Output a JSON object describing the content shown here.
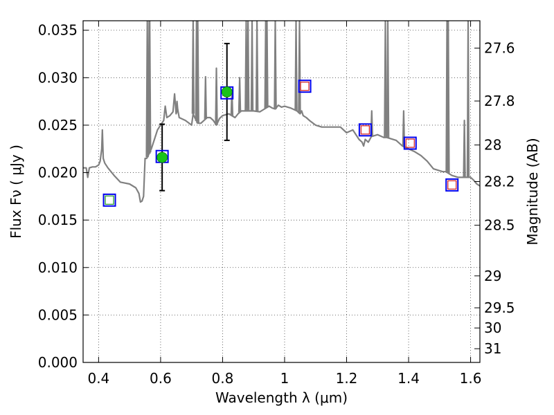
{
  "chart_data": {
    "type": "scatter",
    "xlabel": "Wavelength  λ (μm)",
    "ylabel": "Flux  Fν  ( μJy )",
    "y2label": "Magnitude (AB)",
    "xlim": [
      0.35,
      1.63
    ],
    "ylim": [
      0.0,
      0.036
    ],
    "grid": true,
    "x_ticks": [
      0.4,
      0.6,
      0.8,
      1.0,
      1.2,
      1.4,
      1.6
    ],
    "x_tick_labels": [
      "0.4",
      "0.6",
      "0.8",
      "1",
      "1.2",
      "1.4",
      "1.6"
    ],
    "y_ticks": [
      0.0,
      0.005,
      0.01,
      0.015,
      0.02,
      0.025,
      0.03,
      0.035
    ],
    "y_tick_labels": [
      "0.000",
      "0.005",
      "0.010",
      "0.015",
      "0.020",
      "0.025",
      "0.030",
      "0.035"
    ],
    "mag_ticks": [
      27.6,
      27.8,
      28,
      28.2,
      28.5,
      29,
      29.5,
      30,
      31
    ],
    "mag_tick_labels": [
      "27.6",
      "27.8",
      "28",
      "28.2",
      "28.5",
      "29",
      "29.5",
      "30",
      "31"
    ],
    "detections": [
      {
        "x": 0.605,
        "y": 0.0216,
        "err": 0.0035
      },
      {
        "x": 0.814,
        "y": 0.0285,
        "err": 0.0051
      }
    ],
    "model_points": [
      {
        "x": 0.435,
        "y": 0.0171
      },
      {
        "x": 0.605,
        "y": 0.0217
      },
      {
        "x": 0.814,
        "y": 0.0284
      },
      {
        "x": 1.065,
        "y": 0.0291
      },
      {
        "x": 1.26,
        "y": 0.0245
      },
      {
        "x": 1.405,
        "y": 0.0231
      },
      {
        "x": 1.54,
        "y": 0.0187
      }
    ],
    "inner_markers": [
      {
        "x": 0.435,
        "y": 0.0171,
        "color": "#2ca02c"
      },
      {
        "x": 1.065,
        "y": 0.0291,
        "color": "#d62728"
      },
      {
        "x": 1.26,
        "y": 0.0245,
        "color": "#d62728"
      },
      {
        "x": 1.405,
        "y": 0.0231,
        "color": "#d62728"
      },
      {
        "x": 1.54,
        "y": 0.0187,
        "color": "#d62728"
      }
    ],
    "sed_spectrum": {
      "x": [
        0.35,
        0.36,
        0.365,
        0.37,
        0.38,
        0.39,
        0.4,
        0.405,
        0.41,
        0.412,
        0.415,
        0.42,
        0.43,
        0.45,
        0.47,
        0.5,
        0.52,
        0.53,
        0.535,
        0.54,
        0.545,
        0.55,
        0.555,
        0.56,
        0.57,
        0.58,
        0.59,
        0.6,
        0.61,
        0.615,
        0.62,
        0.63,
        0.64,
        0.645,
        0.65,
        0.655,
        0.66,
        0.68,
        0.7,
        0.705,
        0.71,
        0.72,
        0.73,
        0.74,
        0.75,
        0.76,
        0.77,
        0.78,
        0.79,
        0.8,
        0.82,
        0.84,
        0.85,
        0.86,
        0.88,
        0.9,
        0.92,
        0.94,
        0.95,
        0.96,
        0.97,
        0.98,
        0.99,
        1.0,
        1.01,
        1.02,
        1.04,
        1.05,
        1.055,
        1.06,
        1.07,
        1.08,
        1.1,
        1.12,
        1.15,
        1.18,
        1.2,
        1.22,
        1.24,
        1.25,
        1.255,
        1.26,
        1.27,
        1.28,
        1.3,
        1.32,
        1.33,
        1.34,
        1.36,
        1.38,
        1.4,
        1.42,
        1.44,
        1.46,
        1.48,
        1.5,
        1.51,
        1.52,
        1.54,
        1.56,
        1.57,
        1.58,
        1.59,
        1.6,
        1.61,
        1.62,
        1.63
      ],
      "y": [
        0.0205,
        0.0205,
        0.0195,
        0.0205,
        0.0206,
        0.0206,
        0.0208,
        0.0212,
        0.0225,
        0.0245,
        0.0215,
        0.021,
        0.0205,
        0.0197,
        0.019,
        0.0188,
        0.0184,
        0.0178,
        0.0169,
        0.017,
        0.0175,
        0.0215,
        0.0215,
        0.0218,
        0.0225,
        0.0235,
        0.0245,
        0.025,
        0.0255,
        0.027,
        0.0258,
        0.026,
        0.0264,
        0.0283,
        0.0262,
        0.0267,
        0.0258,
        0.0255,
        0.025,
        0.0262,
        0.0258,
        0.0252,
        0.0252,
        0.0255,
        0.0258,
        0.0258,
        0.0255,
        0.025,
        0.0257,
        0.026,
        0.0262,
        0.0258,
        0.0262,
        0.0265,
        0.0265,
        0.0265,
        0.0264,
        0.0268,
        0.027,
        0.0268,
        0.0267,
        0.0271,
        0.0269,
        0.027,
        0.0269,
        0.0268,
        0.0265,
        0.0262,
        0.0265,
        0.026,
        0.0258,
        0.0255,
        0.025,
        0.0248,
        0.0248,
        0.0248,
        0.0242,
        0.0245,
        0.0235,
        0.0232,
        0.0228,
        0.0235,
        0.0232,
        0.0238,
        0.024,
        0.0237,
        0.0237,
        0.0236,
        0.0234,
        0.0228,
        0.0225,
        0.0222,
        0.0218,
        0.0212,
        0.0204,
        0.0202,
        0.0201,
        0.0201,
        0.0197,
        0.0195,
        0.0195,
        0.0195,
        0.0195,
        0.0195,
        0.0192,
        0.0188,
        0.0186
      ]
    },
    "emission_lines": [
      {
        "x": 0.557,
        "peak": 0.036
      },
      {
        "x": 0.563,
        "peak": 0.036
      },
      {
        "x": 0.565,
        "peak": 0.036
      },
      {
        "x": 0.653,
        "peak": 0.0275
      },
      {
        "x": 0.705,
        "peak": 0.036
      },
      {
        "x": 0.716,
        "peak": 0.036
      },
      {
        "x": 0.72,
        "peak": 0.036
      },
      {
        "x": 0.745,
        "peak": 0.0301
      },
      {
        "x": 0.78,
        "peak": 0.031
      },
      {
        "x": 0.83,
        "peak": 0.0287
      },
      {
        "x": 0.855,
        "peak": 0.03
      },
      {
        "x": 0.876,
        "peak": 0.036
      },
      {
        "x": 0.882,
        "peak": 0.036
      },
      {
        "x": 0.895,
        "peak": 0.036
      },
      {
        "x": 0.911,
        "peak": 0.036
      },
      {
        "x": 0.939,
        "peak": 0.036
      },
      {
        "x": 0.943,
        "peak": 0.036
      },
      {
        "x": 0.97,
        "peak": 0.036
      },
      {
        "x": 1.037,
        "peak": 0.036
      },
      {
        "x": 1.048,
        "peak": 0.036
      },
      {
        "x": 1.281,
        "peak": 0.0265
      },
      {
        "x": 1.325,
        "peak": 0.036
      },
      {
        "x": 1.333,
        "peak": 0.036
      },
      {
        "x": 1.384,
        "peak": 0.0265
      },
      {
        "x": 1.524,
        "peak": 0.036
      },
      {
        "x": 1.528,
        "peak": 0.036
      },
      {
        "x": 1.58,
        "peak": 0.0255
      },
      {
        "x": 1.592,
        "peak": 0.036
      }
    ]
  }
}
